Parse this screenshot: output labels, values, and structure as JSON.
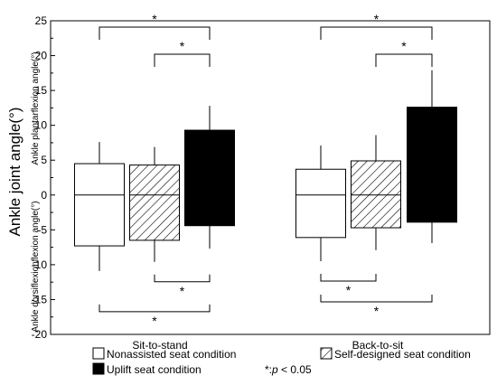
{
  "chart_data": {
    "type": "box",
    "ylabel": "Ankle joint angle(°)",
    "ylabel_upper": "Ankle plantarflexion angle(°)",
    "ylabel_lower": "Ankle dorsiflexionflexion angle(°)",
    "ylim": [
      -20,
      25
    ],
    "yticks": [
      -20,
      -15,
      -10,
      -5,
      0,
      5,
      10,
      15,
      20,
      25
    ],
    "grid": false,
    "legend_position": "bottom",
    "categories": [
      "Sit-to-stand",
      "Back-to-sit"
    ],
    "series": [
      {
        "name": "Nonassisted seat condition",
        "fill": "white",
        "boxes": [
          {
            "whisker_low": -10.9,
            "q1": -7.3,
            "median": 0,
            "q3": 4.5,
            "whisker_high": 7.6
          },
          {
            "whisker_low": -9.5,
            "q1": -6.1,
            "median": 0,
            "q3": 3.7,
            "whisker_high": 7.1
          }
        ]
      },
      {
        "name": "Self-designed seat condition",
        "fill": "hatched",
        "boxes": [
          {
            "whisker_low": -9.6,
            "q1": -6.5,
            "median": 0,
            "q3": 4.3,
            "whisker_high": 6.9
          },
          {
            "whisker_low": -7.9,
            "q1": -4.7,
            "median": 0,
            "q3": 4.9,
            "whisker_high": 8.6
          }
        ]
      },
      {
        "name": "Uplift seat condition",
        "fill": "black",
        "boxes": [
          {
            "whisker_low": -7.7,
            "q1": -4.4,
            "median": null,
            "q3": 9.3,
            "whisker_high": 12.8
          },
          {
            "whisker_low": -6.9,
            "q1": -3.9,
            "median": null,
            "q3": 12.6,
            "whisker_high": 17.9
          }
        ]
      }
    ],
    "significance_label": "*",
    "significance": [
      {
        "group": 0,
        "pair": [
          0,
          2
        ],
        "side": "top"
      },
      {
        "group": 0,
        "pair": [
          1,
          2
        ],
        "side": "top"
      },
      {
        "group": 0,
        "pair": [
          1,
          2
        ],
        "side": "bottom"
      },
      {
        "group": 0,
        "pair": [
          0,
          2
        ],
        "side": "bottom"
      },
      {
        "group": 1,
        "pair": [
          0,
          2
        ],
        "side": "top"
      },
      {
        "group": 1,
        "pair": [
          1,
          2
        ],
        "side": "top"
      },
      {
        "group": 1,
        "pair": [
          0,
          1
        ],
        "side": "bottom"
      },
      {
        "group": 1,
        "pair": [
          0,
          2
        ],
        "side": "bottom"
      }
    ],
    "note_symbol": "*:",
    "note_p": "p",
    "note_rest": " < 0.05"
  }
}
